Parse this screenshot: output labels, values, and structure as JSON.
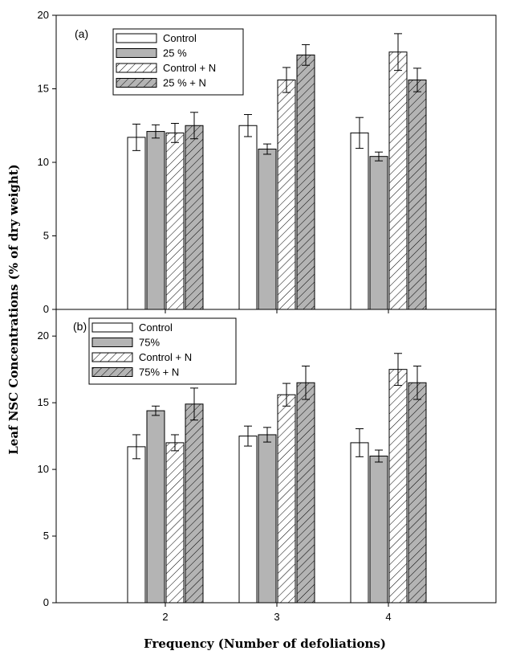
{
  "chart_data": [
    {
      "type": "bar",
      "panel_label": "(a)",
      "categories": [
        "2",
        "3",
        "4"
      ],
      "ylim": [
        0,
        20
      ],
      "yticks": [
        0,
        5,
        10,
        15,
        20
      ],
      "series": [
        {
          "name": "Control",
          "fill": "white",
          "values": [
            11.7,
            12.5,
            12.0
          ],
          "errors": [
            0.9,
            0.75,
            1.05
          ]
        },
        {
          "name": "25 %",
          "fill": "gray",
          "values": [
            12.1,
            10.9,
            10.4
          ],
          "errors": [
            0.45,
            0.35,
            0.3
          ]
        },
        {
          "name": "Control + N",
          "fill": "hatch-white",
          "values": [
            12.0,
            15.6,
            17.5
          ],
          "errors": [
            0.65,
            0.85,
            1.25
          ]
        },
        {
          "name": "25 % + N",
          "fill": "hatch-gray",
          "values": [
            12.5,
            17.3,
            15.6
          ],
          "errors": [
            0.9,
            0.7,
            0.8
          ]
        }
      ],
      "legend_position": "top-left",
      "grid": false
    },
    {
      "type": "bar",
      "panel_label": "(b)",
      "categories": [
        "2",
        "3",
        "4"
      ],
      "ylim": [
        0,
        22
      ],
      "yticks": [
        0,
        5,
        10,
        15,
        20
      ],
      "series": [
        {
          "name": "Control",
          "fill": "white",
          "values": [
            11.7,
            12.5,
            12.0
          ],
          "errors": [
            0.9,
            0.75,
            1.05
          ]
        },
        {
          "name": "75%",
          "fill": "gray",
          "values": [
            14.4,
            12.6,
            11.0
          ],
          "errors": [
            0.35,
            0.55,
            0.45
          ]
        },
        {
          "name": "Control + N",
          "fill": "hatch-white",
          "values": [
            12.0,
            15.6,
            17.5
          ],
          "errors": [
            0.6,
            0.85,
            1.2
          ]
        },
        {
          "name": "75% + N",
          "fill": "hatch-gray",
          "values": [
            14.9,
            16.5,
            16.5
          ],
          "errors": [
            1.2,
            1.25,
            1.25
          ]
        }
      ],
      "legend_position": "top-left",
      "grid": false
    }
  ],
  "xlabel": "Frequency (Number of defoliations)",
  "ylabel": "Leaf NSC Concentrations (% of dry weight)",
  "colors": {
    "bar_gray": "#b4b4b4",
    "stroke": "#000000",
    "background": "#ffffff"
  }
}
